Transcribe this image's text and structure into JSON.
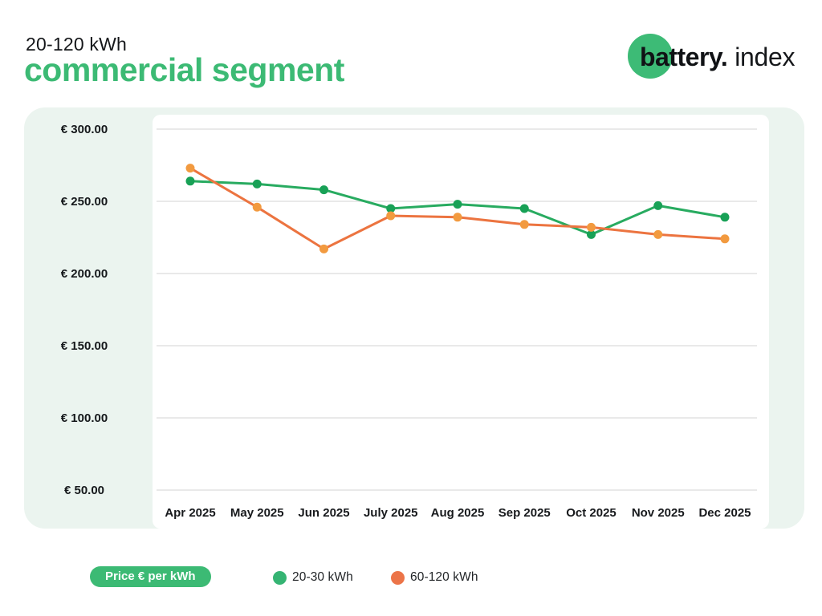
{
  "header": {
    "small_title": "20-120 kWh",
    "big_title": "commercial segment"
  },
  "logo": {
    "brand_bold": "battery.",
    "brand_light": "index",
    "circle_color": "#3dbb76"
  },
  "chart_data": {
    "type": "line",
    "title": "20-120 kWh commercial segment",
    "x": [
      "Apr 2025",
      "May 2025",
      "Jun 2025",
      "July 2025",
      "Aug 2025",
      "Sep 2025",
      "Oct 2025",
      "Nov 2025",
      "Dec 2025"
    ],
    "series": [
      {
        "name": "20-30 kWh",
        "color": "#28ab60",
        "marker_color": "#18a156",
        "values": [
          264,
          262,
          258,
          245,
          248,
          245,
          227,
          247,
          239
        ]
      },
      {
        "name": "60-120 kWh",
        "color": "#ec7440",
        "marker_color": "#f29a3f",
        "values": [
          273,
          246,
          217,
          240,
          239,
          234,
          232,
          227,
          224
        ]
      }
    ],
    "yticks": {
      "labels": [
        "€ 300.00",
        "€ 250.00",
        "€ 200.00",
        "€ 150.00",
        "€ 100.00",
        "€ 50.00"
      ],
      "values": [
        300,
        250,
        200,
        150,
        100,
        50
      ]
    },
    "ylim": [
      50,
      300
    ],
    "ylabel": "Price € per kWh",
    "grid": true,
    "gridline_color": "#e9e9e9",
    "legend_position": "bottom"
  },
  "legend": {
    "pill_label": "Price € per kWh",
    "items": [
      {
        "label": "20-30 kWh",
        "color": "#35b473"
      },
      {
        "label": "60-120 kWh",
        "color": "#ec7448"
      }
    ]
  }
}
